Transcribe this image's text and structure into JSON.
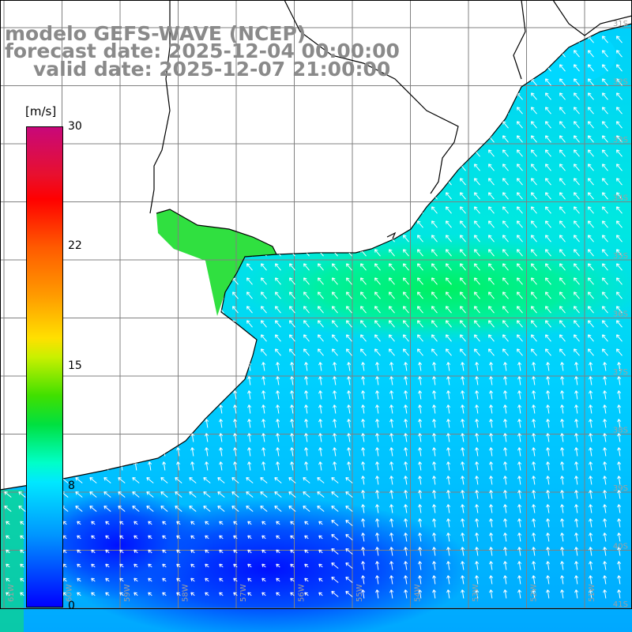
{
  "title": {
    "model": "modelo GEFS-WAVE (NCEP)",
    "forecast": "forecast date: 2025-12-04 00:00:00",
    "valid": "valid date: 2025-12-07 21:00:00"
  },
  "colorbar": {
    "unit": "[m/s]",
    "ticks": [
      "30",
      "22",
      "15",
      "8",
      "0"
    ]
  },
  "lat_labels": [
    "31S",
    "32S",
    "33S",
    "34S",
    "35S",
    "36S",
    "37S",
    "38S",
    "39S",
    "40S",
    "41S"
  ],
  "lon_labels": [
    "61W",
    "60W",
    "59W",
    "58W",
    "57W",
    "56W",
    "55W",
    "54W",
    "53W",
    "52W",
    "51W"
  ],
  "colors": {
    "land": "#ffffff",
    "coast": "#000000",
    "grid": "#808080",
    "arrow": "#ffffff",
    "title": "#8a8a8a"
  }
}
